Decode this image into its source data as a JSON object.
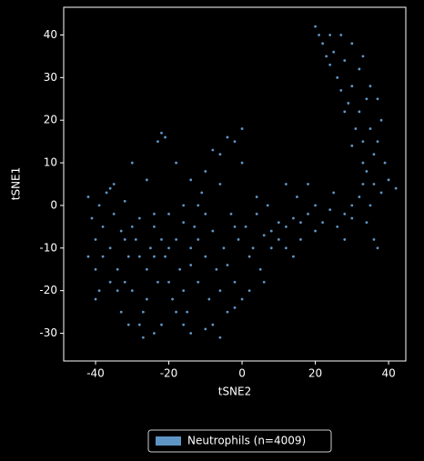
{
  "chart_data": {
    "type": "scatter",
    "x_label": "tSNE2",
    "y_label": "tSNE1",
    "xlim": [
      -48.7,
      44.7
    ],
    "ylim": [
      -36.5,
      46.5
    ],
    "xticks": [
      -40,
      -20,
      0,
      20,
      40
    ],
    "yticks": [
      -30,
      -20,
      -10,
      0,
      10,
      20,
      30,
      40
    ],
    "legend": "bottom",
    "x": [
      -42,
      -41,
      -40,
      -39,
      -38,
      -37,
      -36,
      -35,
      -34,
      -33,
      -32,
      -31,
      -30,
      -29,
      -28,
      -27,
      -26,
      -25,
      -24,
      -23,
      -22,
      -21,
      -20,
      -19,
      -18,
      -17,
      -16,
      -15,
      -14,
      -13,
      -12,
      -11,
      -10,
      -9,
      -8,
      -7,
      -6,
      -5,
      -4,
      -3,
      -2,
      -1,
      0,
      1,
      2,
      3,
      4,
      5,
      6,
      7,
      -38,
      -36,
      -34,
      -32,
      -30,
      -28,
      -26,
      -24,
      -22,
      -20,
      -18,
      -16,
      -14,
      -12,
      -10,
      -8,
      -6,
      -4,
      -2,
      0,
      2,
      4,
      6,
      8,
      10,
      12,
      14,
      16,
      -22,
      -21,
      -23,
      -42,
      -40,
      -39,
      -33,
      -31,
      -27,
      -24,
      -16,
      -14,
      -10,
      -6,
      -2,
      -8,
      -6,
      -4,
      -2,
      0,
      -10,
      -14,
      -18,
      -26,
      -30,
      -35,
      -12,
      -16,
      -20,
      -24,
      -28,
      -32,
      -36,
      -40,
      8,
      10,
      12,
      14,
      16,
      18,
      20,
      22,
      24,
      26,
      28,
      30,
      32,
      34,
      36,
      15,
      18,
      20,
      12,
      25,
      28,
      30,
      33,
      35,
      37,
      34,
      36,
      33,
      35,
      32,
      34,
      30,
      32,
      28,
      30,
      27,
      25,
      26,
      24,
      29,
      31,
      37,
      36,
      38,
      40,
      42,
      38,
      35,
      33,
      22,
      20,
      24,
      28,
      30,
      33,
      37,
      39,
      27,
      23,
      21
    ],
    "series": [
      {
        "name": "Neutrophils (n=4009)",
        "color": "#5f95c4",
        "values": [
          2,
          -3,
          -8,
          0,
          -5,
          3,
          -10,
          -2,
          -15,
          -6,
          1,
          -12,
          -20,
          -8,
          -3,
          -25,
          -15,
          -10,
          -5,
          -18,
          -28,
          -12,
          -2,
          -22,
          -8,
          -15,
          0,
          -25,
          -10,
          -5,
          -18,
          3,
          -12,
          -22,
          -6,
          -15,
          5,
          -10,
          -25,
          -2,
          -18,
          -8,
          10,
          -5,
          -20,
          -10,
          2,
          -15,
          -7,
          0,
          -12,
          4,
          -20,
          -18,
          -5,
          -28,
          -22,
          -12,
          -8,
          -18,
          -25,
          -20,
          -14,
          -8,
          -2,
          -28,
          -20,
          -14,
          -5,
          -22,
          -12,
          -2,
          -18,
          -10,
          -8,
          -5,
          -12,
          -4,
          17,
          16,
          15,
          -12,
          -15,
          -20,
          -25,
          -28,
          -31,
          -30,
          -28,
          -30,
          -29,
          -31,
          -24,
          13,
          12,
          16,
          15,
          18,
          8,
          6,
          10,
          6,
          10,
          5,
          0,
          -4,
          -10,
          -2,
          -12,
          -8,
          -18,
          -22,
          -6,
          -4,
          -10,
          -3,
          -8,
          -2,
          -6,
          -4,
          -1,
          -5,
          -2,
          0,
          2,
          -4,
          -8,
          2,
          5,
          0,
          5,
          3,
          -8,
          -3,
          5,
          0,
          -10,
          8,
          12,
          15,
          18,
          22,
          25,
          28,
          32,
          34,
          38,
          40,
          36,
          30,
          33,
          24,
          18,
          15,
          5,
          3,
          6,
          4,
          20,
          28,
          35,
          38,
          42,
          40,
          22,
          14,
          10,
          25,
          10,
          27,
          35,
          40
        ]
      }
    ]
  }
}
